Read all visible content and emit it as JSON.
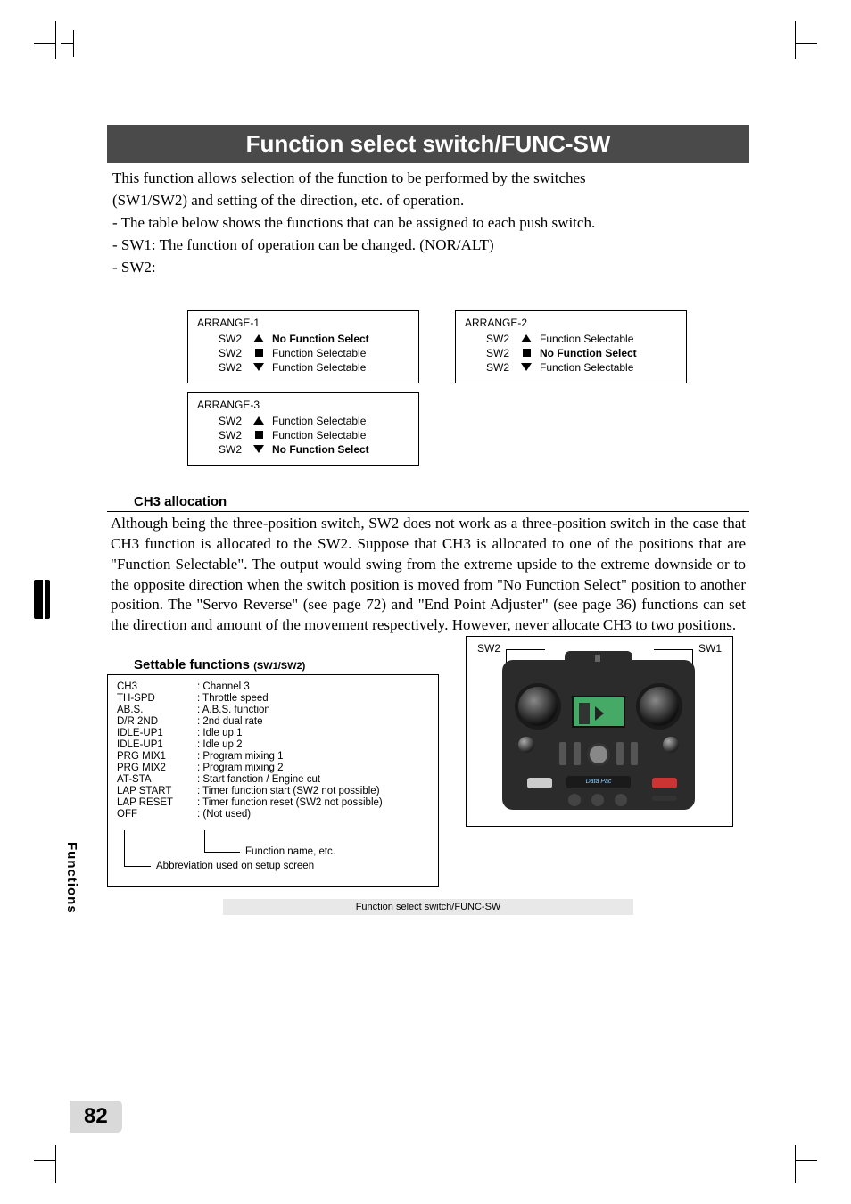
{
  "title": "Function select switch/FUNC-SW",
  "intro": {
    "l1": "This function allows selection of the function to be performed by the  switches",
    "l2": "(SW1/SW2) and setting of the direction, etc. of operation.",
    "l3": "- The table below shows the functions that can be assigned to each push switch.",
    "l4": "- SW1: The function of operation can be changed. (NOR/ALT)",
    "l5": "- SW2:"
  },
  "arrange": {
    "swLabel": "SW2",
    "noFunc": "No Function Select",
    "selectable": "Function Selectable",
    "box1": "ARRANGE-1",
    "box2": "ARRANGE-2",
    "box3": "ARRANGE-3"
  },
  "ch3": {
    "header": "CH3 allocation",
    "body": "Although being the three-position switch, SW2 does not work as a three-position switch in the case that CH3 function is allocated to the SW2. Suppose that CH3 is allocated to one of the positions that are \"Function Selectable\". The output would swing from the extreme upside to the extreme downside or to the opposite direction when the switch position is moved from \"No Function Select\" position to another position. The \"Servo Reverse\" (see page 72) and \"End Point Adjuster\" (see page 36) functions can set the direction and amount of the movement respectively. However, never allocate CH3 to two positions."
  },
  "functions": {
    "header": "Settable functions",
    "sub": "(SW1/SW2)",
    "rows": [
      {
        "a": "CH3",
        "d": ": Channel 3"
      },
      {
        "a": "TH-SPD",
        "d": ": Throttle speed"
      },
      {
        "a": "AB.S.",
        "d": ": A.B.S. function"
      },
      {
        "a": "D/R 2ND",
        "d": ": 2nd dual rate"
      },
      {
        "a": "IDLE-UP1",
        "d": ": Idle up 1"
      },
      {
        "a": "IDLE-UP1",
        "d": ": Idle up 2"
      },
      {
        "a": "PRG MIX1",
        "d": ": Program mixing 1"
      },
      {
        "a": "PRG MIX2",
        "d": ": Program mixing 2"
      },
      {
        "a": "AT-STA",
        "d": ": Start fanction / Engine cut"
      },
      {
        "a": "LAP START",
        "d": ": Timer function start (SW2 not possible)"
      },
      {
        "a": "LAP RESET",
        "d": ": Timer function reset (SW2 not possible)"
      },
      {
        "a": "OFF",
        "d": ": (Not used)"
      }
    ],
    "legend1": "Function name, etc.",
    "legend2": "Abbreviation used on setup screen"
  },
  "radio": {
    "sw1": "SW1",
    "sw2": "SW2",
    "dp": "Data Pac"
  },
  "footer": "Function select switch/FUNC-SW",
  "sideTab": "Functions",
  "pageNum": "82"
}
